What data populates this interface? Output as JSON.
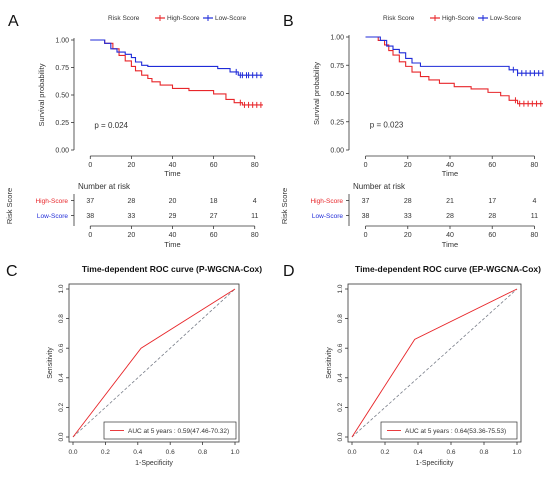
{
  "colors": {
    "high": "#e8262a",
    "low": "#1f2bd8",
    "axis": "#333333",
    "text": "#333333",
    "diag": "#7a7f8a",
    "roc": "#e8262a"
  },
  "chart_data": [
    {
      "panel_label": "A",
      "type": "line",
      "subtype": "kaplan-meier",
      "legend_title": "Risk Score",
      "legend_placement": "top",
      "xlabel": "Time",
      "ylabel": "Survival probability",
      "xlim": [
        -5,
        85
      ],
      "ylim": [
        0,
        1
      ],
      "x_ticks": [
        "0",
        "20",
        "40",
        "60",
        "80"
      ],
      "y_ticks": [
        "0.00",
        "0.25",
        "0.50",
        "0.75",
        "1.00"
      ],
      "annotation": "p = 0.024",
      "series": [
        {
          "name": "High-Score",
          "color": "#e8262a",
          "x": [
            0,
            7,
            11,
            14,
            17,
            20,
            22,
            25,
            28,
            30,
            34,
            40,
            48,
            55,
            60,
            66,
            70,
            74,
            84
          ],
          "y": [
            1.0,
            0.97,
            0.92,
            0.86,
            0.81,
            0.76,
            0.72,
            0.68,
            0.65,
            0.62,
            0.59,
            0.56,
            0.54,
            0.54,
            0.51,
            0.46,
            0.43,
            0.41,
            0.41
          ],
          "censor_x": [
            73,
            75,
            77,
            79,
            81,
            83
          ]
        },
        {
          "name": "Low-Score",
          "color": "#1f2bd8",
          "x": [
            0,
            7,
            10,
            13,
            17,
            20,
            22,
            25,
            28,
            46,
            62,
            68,
            72,
            84
          ],
          "y": [
            1.0,
            0.97,
            0.92,
            0.89,
            0.87,
            0.84,
            0.8,
            0.77,
            0.76,
            0.76,
            0.74,
            0.71,
            0.68,
            0.68
          ],
          "censor_x": [
            71,
            73,
            74,
            76,
            77,
            79,
            81,
            83
          ]
        }
      ],
      "risk_table": {
        "title": "Number at risk",
        "ylabel": "Risk Score",
        "xlabel": "Time",
        "x_ticks": [
          "0",
          "20",
          "40",
          "60",
          "80"
        ],
        "rows": [
          {
            "name": "High-Score",
            "color": "#e8262a",
            "values": [
              "37",
              "28",
              "20",
              "18",
              "4"
            ]
          },
          {
            "name": "Low-Score",
            "color": "#1f2bd8",
            "values": [
              "38",
              "33",
              "29",
              "27",
              "11"
            ]
          }
        ]
      }
    },
    {
      "panel_label": "B",
      "type": "line",
      "subtype": "kaplan-meier",
      "legend_title": "Risk Score",
      "legend_placement": "top",
      "xlabel": "Time",
      "ylabel": "Survival probability",
      "xlim": [
        -5,
        85
      ],
      "ylim": [
        0,
        1
      ],
      "x_ticks": [
        "0",
        "20",
        "40",
        "60",
        "80"
      ],
      "y_ticks": [
        "0.00",
        "0.25",
        "0.50",
        "0.75",
        "1.00"
      ],
      "annotation": "p = 0.023",
      "series": [
        {
          "name": "High-Score",
          "color": "#e8262a",
          "x": [
            0,
            6,
            9,
            11,
            13,
            16,
            19,
            22,
            26,
            30,
            35,
            42,
            50,
            58,
            64,
            68,
            72,
            84
          ],
          "y": [
            1.0,
            0.97,
            0.93,
            0.88,
            0.84,
            0.78,
            0.74,
            0.69,
            0.65,
            0.62,
            0.59,
            0.56,
            0.54,
            0.51,
            0.48,
            0.44,
            0.41,
            0.41
          ],
          "censor_x": [
            71,
            73,
            75,
            77,
            79,
            81,
            83
          ]
        },
        {
          "name": "Low-Score",
          "color": "#1f2bd8",
          "x": [
            0,
            7,
            10,
            13,
            16,
            19,
            22,
            26,
            42,
            60,
            68,
            72,
            84
          ],
          "y": [
            1.0,
            0.97,
            0.92,
            0.89,
            0.86,
            0.81,
            0.77,
            0.74,
            0.74,
            0.74,
            0.71,
            0.68,
            0.68
          ],
          "censor_x": [
            70,
            72,
            74,
            76,
            78,
            80,
            82,
            84
          ]
        }
      ],
      "risk_table": {
        "title": "Number at risk",
        "ylabel": "Risk Score",
        "xlabel": "Time",
        "x_ticks": [
          "0",
          "20",
          "40",
          "60",
          "80"
        ],
        "rows": [
          {
            "name": "High-Score",
            "color": "#e8262a",
            "values": [
              "37",
              "28",
              "21",
              "17",
              "4"
            ]
          },
          {
            "name": "Low-Score",
            "color": "#1f2bd8",
            "values": [
              "38",
              "33",
              "28",
              "28",
              "11"
            ]
          }
        ]
      }
    },
    {
      "panel_label": "C",
      "type": "line",
      "subtype": "roc",
      "title": "Time-dependent ROC curve (P-WGCNA-Cox)",
      "xlabel": "1-Specificity",
      "ylabel": "Sensitivity",
      "xlim": [
        0,
        1
      ],
      "ylim": [
        0,
        1
      ],
      "x_ticks": [
        "0.0",
        "0.2",
        "0.4",
        "0.6",
        "0.8",
        "1.0"
      ],
      "y_ticks": [
        "0.0",
        "0.2",
        "0.4",
        "0.6",
        "0.8",
        "1.0"
      ],
      "series": [
        {
          "name": "AUC at 5 years : 0.59(47.46-70.32)",
          "color": "#e8262a",
          "x": [
            0,
            0.42,
            1
          ],
          "y": [
            0,
            0.6,
            1
          ]
        }
      ],
      "diagonal": true,
      "legend_placement": "bottom-right"
    },
    {
      "panel_label": "D",
      "type": "line",
      "subtype": "roc",
      "title": "Time-dependent ROC curve (EP-WGCNA-Cox)",
      "xlabel": "1-Specificity",
      "ylabel": "Sensitivity",
      "xlim": [
        0,
        1
      ],
      "ylim": [
        0,
        1
      ],
      "x_ticks": [
        "0.0",
        "0.2",
        "0.4",
        "0.6",
        "0.8",
        "1.0"
      ],
      "y_ticks": [
        "0.0",
        "0.2",
        "0.4",
        "0.6",
        "0.8",
        "1.0"
      ],
      "series": [
        {
          "name": "AUC at 5 years : 0.64(53.36-75.53)",
          "color": "#e8262a",
          "x": [
            0,
            0.38,
            1
          ],
          "y": [
            0,
            0.66,
            1
          ]
        }
      ],
      "diagonal": true,
      "legend_placement": "bottom-right"
    }
  ]
}
